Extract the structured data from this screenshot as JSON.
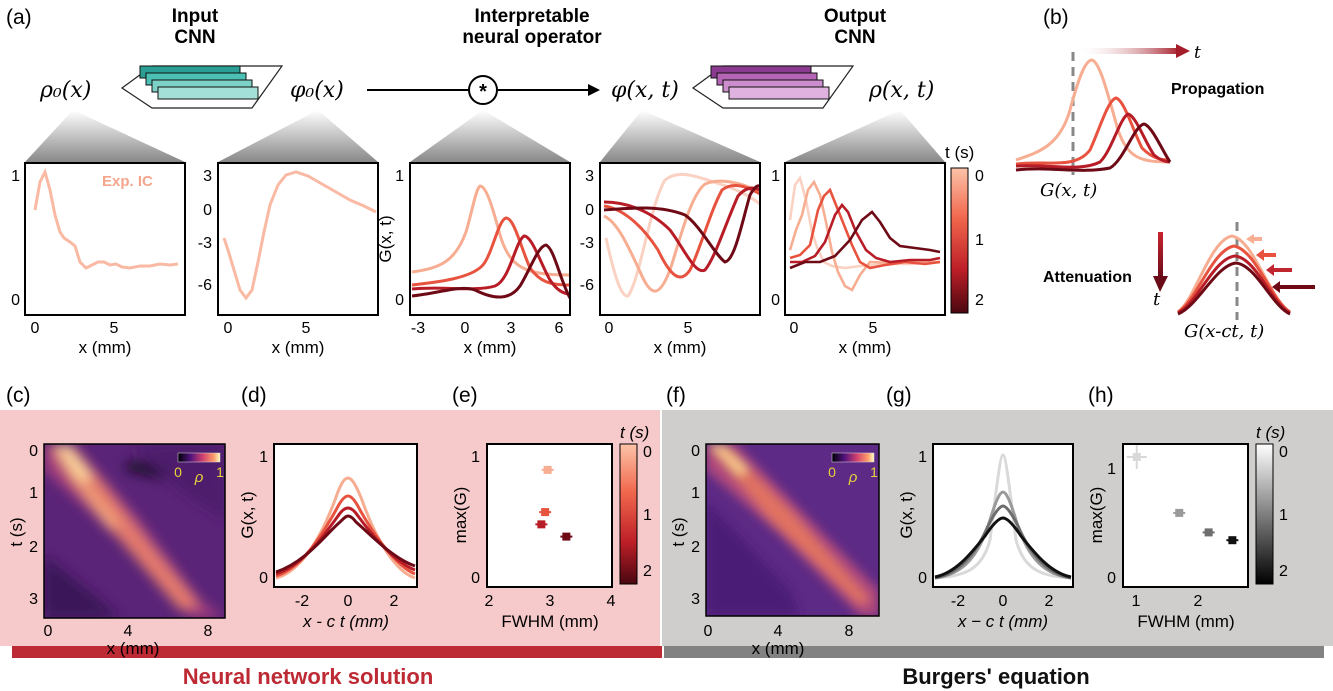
{
  "panel_labels": {
    "a": "(a)",
    "b": "(b)",
    "c": "(c)",
    "d": "(d)",
    "e": "(e)",
    "f": "(f)",
    "g": "(g)",
    "h": "(h)"
  },
  "pipeline": {
    "input_cnn": [
      "Input",
      "CNN"
    ],
    "operator": [
      "Interpretable",
      "neural operator"
    ],
    "output_cnn": [
      "Output",
      "CNN"
    ],
    "var_rho0": "ρ₀(x)",
    "var_phi0": "φ₀(x)",
    "var_phixt": "φ(x, t)",
    "var_rhoxt": "ρ(x, t)",
    "conv_symbol": "*"
  },
  "colors": {
    "t0": "#f7ad91",
    "t1": "#e8533f",
    "t2": "#b81d27",
    "t3": "#6e0a16",
    "gray0": "#d9d9d9",
    "gray1": "#9a9a9a",
    "gray2": "#6e6e6e",
    "gray3": "#111111",
    "nn_bg": "#f6c9ca",
    "nn_bar": "#be2a34",
    "burg_bg": "#d0cecd",
    "burg_bar": "#828282"
  },
  "panel_a": {
    "exp_ic_label": "Exp. IC",
    "colorbar_title": "t (s)",
    "colorbar_ticks": [
      "0",
      "1",
      "2"
    ],
    "x_label": "x (mm)",
    "g_x_label": "x (mm)",
    "g_y_label": "G(x, t)",
    "x_ticks": [
      "0",
      "5"
    ],
    "g_x_ticks": [
      "-3",
      "0",
      "3",
      "6"
    ],
    "rho0_y_ticks": [
      "1",
      "0"
    ],
    "phi0_y_ticks": [
      "3",
      "0",
      "-3",
      "-6"
    ],
    "g_y_ticks": [
      "1",
      "0"
    ],
    "phi_y_ticks": [
      "3",
      "0",
      "-3",
      "-6"
    ],
    "rho_y_ticks": [
      "1",
      "0"
    ]
  },
  "panel_b": {
    "propagation": "Propagation",
    "attenuation": "Attenuation",
    "t_symbol": "t",
    "g_label": "G(x, t)",
    "g_shift_label": "G(x-ct, t)"
  },
  "panel_c": {
    "x_label": "x (mm)",
    "y_label": "t (s)",
    "x_ticks": [
      "0",
      "4",
      "8"
    ],
    "y_ticks": [
      "0",
      "1",
      "2",
      "3"
    ],
    "cb_ticks": [
      "0",
      "1"
    ],
    "cb_symbol": "ρ"
  },
  "panel_d": {
    "x_label": "x - c t (mm)",
    "y_label": "G(x, t)",
    "x_ticks": [
      "-2",
      "0",
      "2"
    ],
    "y_ticks": [
      "1",
      "0"
    ]
  },
  "panel_e": {
    "x_label": "FWHM (mm)",
    "y_label": "max(G)",
    "x_ticks": [
      "2",
      "3",
      "4"
    ],
    "y_ticks": [
      "1",
      "0"
    ],
    "cb_title": "t (s)",
    "cb_ticks": [
      "0",
      "1",
      "2"
    ]
  },
  "panel_f": {
    "x_label": "x (mm)",
    "y_label": "t (s)",
    "x_ticks": [
      "0",
      "4",
      "8"
    ],
    "y_ticks": [
      "0",
      "1",
      "2",
      "3"
    ],
    "cb_ticks": [
      "0",
      "1"
    ],
    "cb_symbol": "ρ"
  },
  "panel_g": {
    "x_label": "x − c t (mm)",
    "y_label": "G(x, t)",
    "x_ticks": [
      "-2",
      "0",
      "2"
    ],
    "y_ticks": [
      "1",
      "0"
    ]
  },
  "panel_h": {
    "x_label": "FWHM (mm)",
    "y_label": "max(G)",
    "x_ticks": [
      "1",
      "2"
    ],
    "y_ticks": [
      "1",
      "0"
    ],
    "cb_title": "t (s)",
    "cb_ticks": [
      "0",
      "1",
      "2"
    ]
  },
  "banners": {
    "neural": "Neural network solution",
    "burgers": "Burgers' equation"
  },
  "chart_data": [
    {
      "type": "scatter",
      "id": "e",
      "xlabel": "FWHM (mm)",
      "ylabel": "max(G)",
      "xlim": [
        2,
        4
      ],
      "ylim": [
        0,
        1.05
      ],
      "series": [
        {
          "x": [
            2.97
          ],
          "y": [
            0.86
          ]
        },
        {
          "x": [
            2.93
          ],
          "y": [
            0.55
          ]
        },
        {
          "x": [
            2.87
          ],
          "y": [
            0.46
          ]
        },
        {
          "x": [
            3.27
          ],
          "y": [
            0.37
          ]
        }
      ]
    },
    {
      "type": "scatter",
      "id": "h",
      "xlabel": "FWHM (mm)",
      "ylabel": "max(G)",
      "xlim": [
        0.6,
        2.6
      ],
      "ylim": [
        0,
        1.1
      ],
      "series": [
        {
          "x": [
            0.82
          ],
          "y": [
            1.0
          ]
        },
        {
          "x": [
            1.5
          ],
          "y": [
            0.57
          ]
        },
        {
          "x": [
            1.97
          ],
          "y": [
            0.42
          ]
        },
        {
          "x": [
            2.35
          ],
          "y": [
            0.36
          ]
        }
      ]
    }
  ]
}
